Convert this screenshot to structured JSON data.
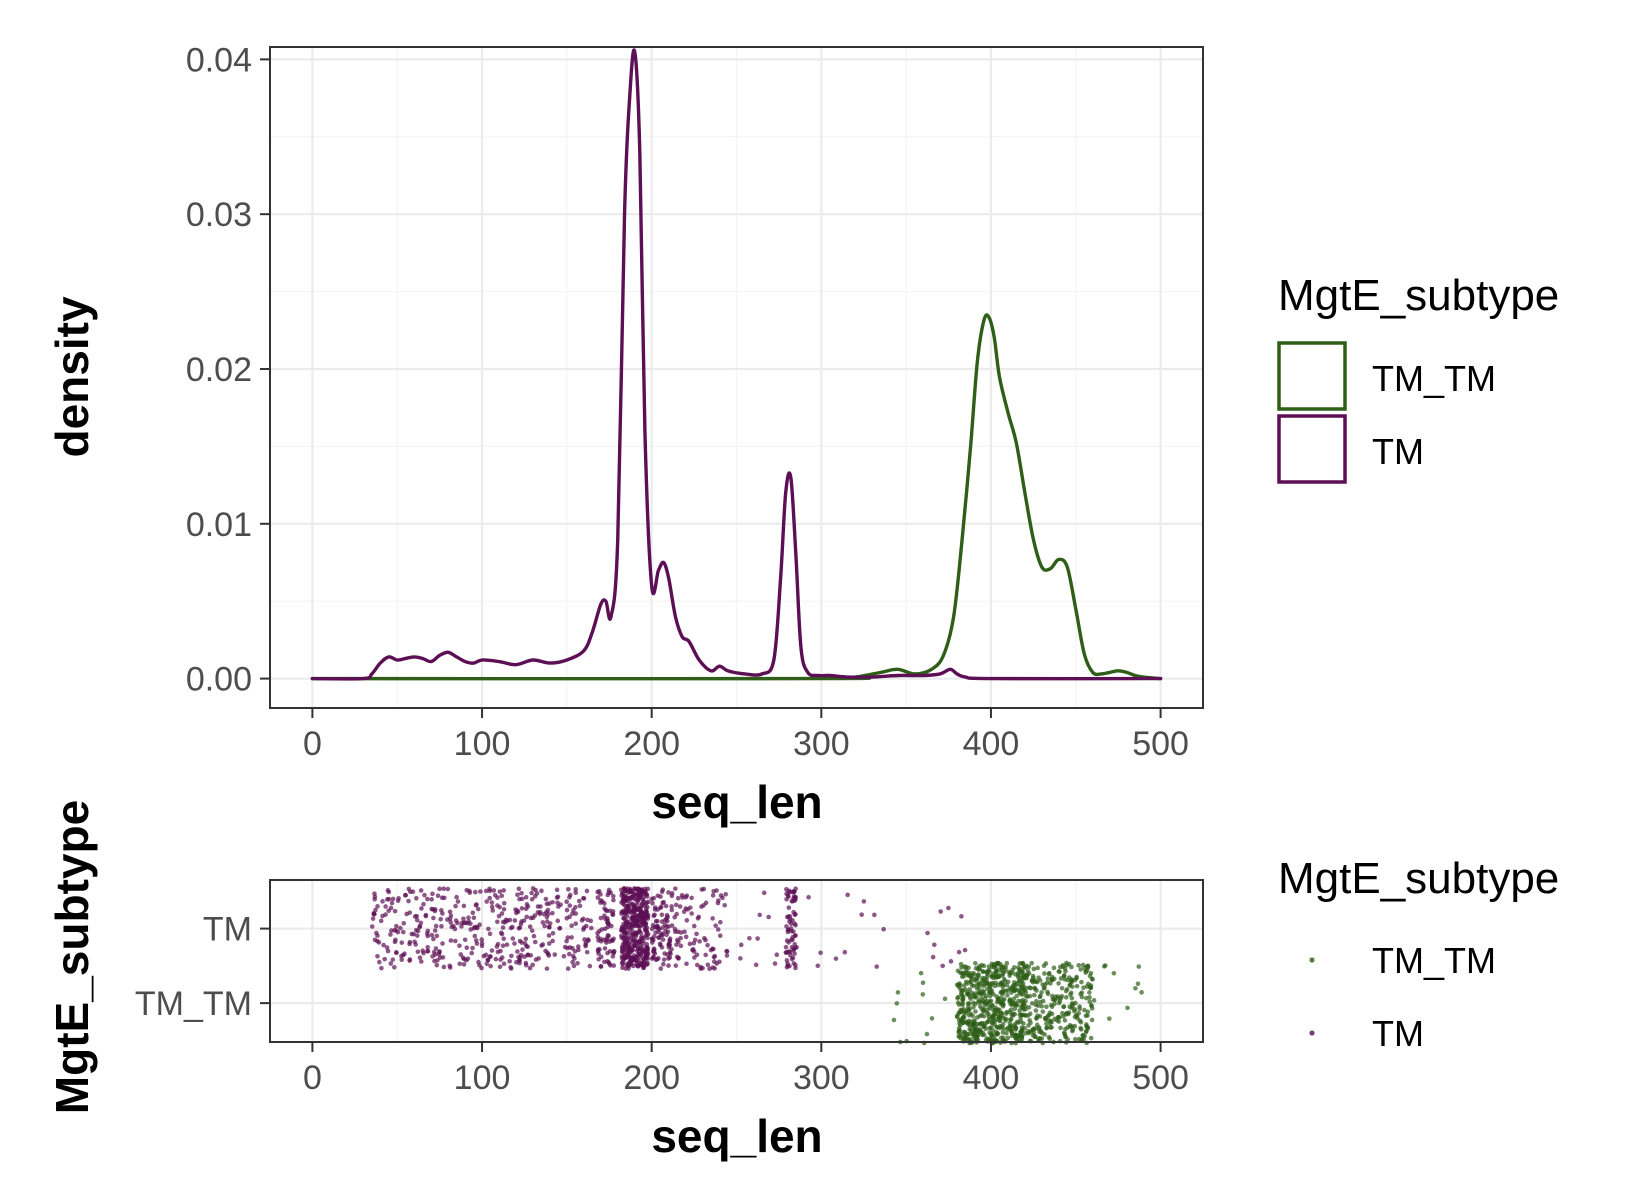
{
  "colors": {
    "TM_TM": "#2e5e17",
    "TM": "#5c0f54"
  },
  "chart_data": [
    {
      "type": "line",
      "subtype": "density",
      "xlabel": "seq_len",
      "ylabel": "density",
      "xlim": [
        -25,
        525
      ],
      "ylim": [
        -0.0019,
        0.0408
      ],
      "xticks": [
        0,
        100,
        200,
        300,
        400,
        500
      ],
      "yticks": [
        0,
        0.01,
        0.02,
        0.03,
        0.04
      ],
      "xtick_labels": [
        "0",
        "100",
        "200",
        "300",
        "400",
        "500"
      ],
      "ytick_labels": [
        "0.00",
        "0.01",
        "0.02",
        "0.03",
        "0.04"
      ],
      "grid": true,
      "legend": {
        "title": "MgtE_subtype",
        "position": "right",
        "entries": [
          "TM_TM",
          "TM"
        ]
      },
      "series": [
        {
          "name": "TM_TM",
          "color": "#2e5e17",
          "x": [
            0,
            300,
            320,
            335,
            345,
            355,
            365,
            372,
            378,
            383,
            388,
            392,
            396,
            399,
            402,
            405,
            410,
            415,
            420,
            425,
            430,
            435,
            440,
            445,
            450,
            455,
            460,
            465,
            470,
            475,
            480,
            485,
            490,
            500
          ],
          "y": [
            0,
            0,
            0.0001,
            0.0004,
            0.0006,
            0.0003,
            0.0006,
            0.0015,
            0.004,
            0.009,
            0.015,
            0.0205,
            0.0232,
            0.0233,
            0.022,
            0.0195,
            0.0172,
            0.0152,
            0.012,
            0.009,
            0.0072,
            0.0071,
            0.0077,
            0.0072,
            0.0045,
            0.0016,
            0.0004,
            0.0003,
            0.0004,
            0.0005,
            0.0004,
            0.0002,
            0.0001,
            0
          ]
        },
        {
          "name": "TM",
          "color": "#5c0f54",
          "x": [
            0,
            30,
            35,
            40,
            45,
            50,
            55,
            60,
            65,
            70,
            75,
            80,
            85,
            90,
            95,
            100,
            110,
            120,
            130,
            140,
            150,
            160,
            165,
            170,
            173,
            176,
            180,
            184,
            187,
            190,
            193,
            196,
            200,
            204,
            207,
            210,
            214,
            218,
            222,
            228,
            235,
            240,
            245,
            255,
            265,
            272,
            276,
            279,
            282,
            285,
            288,
            292,
            298,
            305,
            315,
            330,
            345,
            360,
            370,
            376,
            380,
            385,
            400,
            500
          ],
          "y": [
            0,
            0,
            0.0003,
            0.001,
            0.0014,
            0.0012,
            0.0013,
            0.0014,
            0.0013,
            0.0011,
            0.0015,
            0.0017,
            0.0014,
            0.0011,
            0.001,
            0.0012,
            0.0011,
            0.0009,
            0.0012,
            0.001,
            0.0012,
            0.0018,
            0.003,
            0.0048,
            0.005,
            0.004,
            0.009,
            0.03,
            0.0375,
            0.0405,
            0.034,
            0.016,
            0.006,
            0.007,
            0.0075,
            0.0065,
            0.004,
            0.0027,
            0.0024,
            0.0012,
            0.0005,
            0.0008,
            0.0005,
            0.0003,
            0.0003,
            0.0012,
            0.0065,
            0.012,
            0.013,
            0.008,
            0.002,
            0.0004,
            0.0002,
            0.0002,
            0.0001,
            0.0001,
            0.0002,
            0.0002,
            0.0003,
            0.0006,
            0.0003,
            0.0001,
            0,
            0
          ]
        }
      ]
    },
    {
      "type": "scatter",
      "subtype": "jitter",
      "xlabel": "seq_len",
      "ylabel": "MgtE_subtype",
      "xlim": [
        -25,
        525
      ],
      "xticks": [
        0,
        100,
        200,
        300,
        400,
        500
      ],
      "xtick_labels": [
        "0",
        "100",
        "200",
        "300",
        "400",
        "500"
      ],
      "categories": [
        "TM",
        "TM_TM"
      ],
      "grid": true,
      "legend": {
        "title": "MgtE_subtype",
        "position": "right",
        "entries": [
          "TM_TM",
          "TM"
        ]
      },
      "series": [
        {
          "name": "TM",
          "color": "#5c0f54",
          "clusters": [
            {
              "range": [
                35,
                165
              ],
              "count": 420
            },
            {
              "range": [
                168,
                178
              ],
              "count": 70
            },
            {
              "range": [
                182,
                198
              ],
              "count": 420
            },
            {
              "range": [
                200,
                212
              ],
              "count": 90
            },
            {
              "range": [
                212,
                245
              ],
              "count": 90
            },
            {
              "range": [
                250,
                275
              ],
              "count": 10
            },
            {
              "range": [
                279,
                285
              ],
              "count": 70
            },
            {
              "range": [
                285,
                340
              ],
              "count": 12
            },
            {
              "range": [
                360,
                390
              ],
              "count": 10
            }
          ]
        },
        {
          "name": "TM_TM",
          "color": "#2e5e17",
          "clusters": [
            {
              "range": [
                340,
                380
              ],
              "count": 12
            },
            {
              "range": [
                380,
                420
              ],
              "count": 560
            },
            {
              "range": [
                420,
                460
              ],
              "count": 280
            },
            {
              "range": [
                460,
                490
              ],
              "count": 10
            }
          ]
        }
      ]
    }
  ]
}
